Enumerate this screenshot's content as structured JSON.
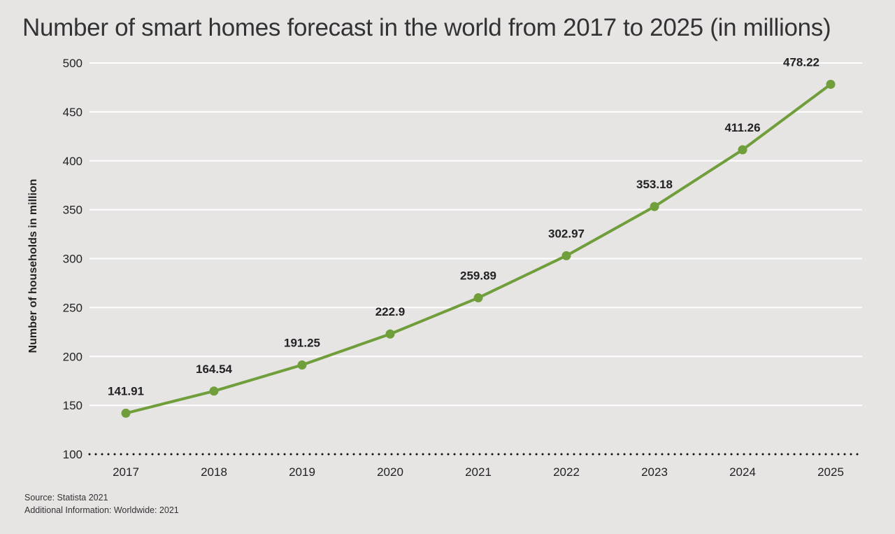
{
  "chart_data": {
    "type": "line",
    "title": "Number of smart homes forecast in the world from 2017 to 2025 (in millions)",
    "xlabel": "",
    "ylabel": "Number of households in million",
    "categories": [
      "2017",
      "2018",
      "2019",
      "2020",
      "2021",
      "2022",
      "2023",
      "2024",
      "2025"
    ],
    "values": [
      141.91,
      164.54,
      191.25,
      222.9,
      259.89,
      302.97,
      353.18,
      411.26,
      478.22
    ],
    "data_labels": [
      "141.91",
      "164.54",
      "191.25",
      "222.9",
      "259.89",
      "302.97",
      "353.18",
      "411.26",
      "478.22"
    ],
    "ylim": [
      100,
      500
    ],
    "yticks": [
      100,
      150,
      200,
      250,
      300,
      350,
      400,
      450,
      500
    ],
    "grid": true,
    "legend": "none",
    "colors": {
      "line": "#6f9e3a",
      "grid": "#ffffff",
      "background": "#e7e4e4"
    }
  },
  "footer": {
    "source": "Source: Statista 2021",
    "additional": "Additional Information: Worldwide: 2021"
  }
}
